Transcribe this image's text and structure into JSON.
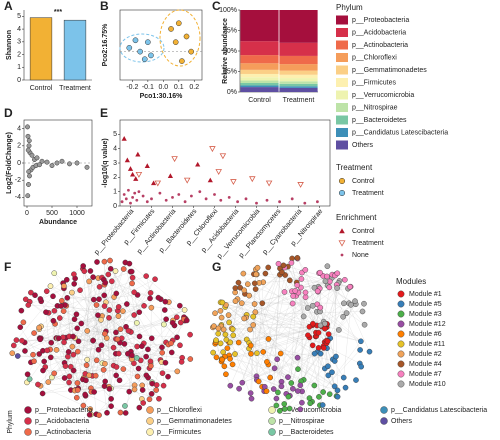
{
  "panels": [
    "A",
    "B",
    "C",
    "D",
    "E",
    "F",
    "G"
  ],
  "chart_data": [
    {
      "type": "bar",
      "ylabel": "Shannon",
      "categories": [
        "Control",
        "Treatment"
      ],
      "values": [
        4.9,
        4.7
      ],
      "colors": [
        "#f2b134",
        "#7cc3ea"
      ],
      "ylim": [
        0,
        5.5
      ],
      "yticks": [
        0,
        1,
        2,
        3,
        4,
        5
      ],
      "annotation": "***"
    },
    {
      "type": "scatter",
      "xlabel": "Pco1:30.16%",
      "ylabel": "Pco2:16.75%",
      "legend_title": "Treatment",
      "series": [
        {
          "name": "Control",
          "color": "#f2b134",
          "marker": "circle",
          "x": [
            0.05,
            0.08,
            0.1,
            0.12,
            0.15,
            0.18
          ],
          "values": [
            0.12,
            0.05,
            0.15,
            -0.05,
            0.08,
            0.0
          ]
        },
        {
          "name": "Treatment",
          "color": "#7cc3ea",
          "marker": "circle",
          "x": [
            -0.22,
            -0.18,
            -0.15,
            -0.12,
            -0.1,
            -0.08
          ],
          "values": [
            0.02,
            0.06,
            0.0,
            -0.04,
            0.05,
            -0.02
          ]
        }
      ],
      "xlim": [
        -0.28,
        0.25
      ],
      "ylim": [
        -0.15,
        0.22
      ],
      "xticks": [
        -0.2,
        -0.1,
        {
          "value": 0,
          "label": "0.0"
        },
        0.1,
        0.2
      ]
    },
    {
      "type": "stacked_bar",
      "ylabel": "Relative abundance",
      "legend_title": "Phylum",
      "categories": [
        "Control",
        "Treatment"
      ],
      "series": [
        {
          "name": "p__Proteobacteria",
          "color": "#a50f3d",
          "values": [
            38,
            40
          ]
        },
        {
          "name": "p__Acidobacteria",
          "color": "#d6304a",
          "values": [
            17,
            16
          ]
        },
        {
          "name": "p__Actinobacteria",
          "color": "#ef6a4a",
          "values": [
            10,
            10
          ]
        },
        {
          "name": "p__Chloroflexi",
          "color": "#f59d5b",
          "values": [
            8,
            8
          ]
        },
        {
          "name": "p__Gemmatimonadetes",
          "color": "#fbcf86",
          "values": [
            5,
            5
          ]
        },
        {
          "name": "p__Firmicutes",
          "color": "#fdf0b0",
          "values": [
            4,
            4
          ]
        },
        {
          "name": "p__Verrucomicrobia",
          "color": "#eef3b0",
          "values": [
            4,
            4
          ]
        },
        {
          "name": "p__Nitrospirae",
          "color": "#bde3a8",
          "values": [
            3,
            3
          ]
        },
        {
          "name": "p__Bacteroidetes",
          "color": "#79c7a4",
          "values": [
            3,
            3
          ]
        },
        {
          "name": "p__Candidatus Latescibacteria",
          "color": "#3d8fb8",
          "values": [
            2,
            2
          ]
        },
        {
          "name": "Others",
          "color": "#5e4fa2",
          "values": [
            6,
            5
          ]
        }
      ],
      "ylim": [
        0,
        100
      ],
      "yticks": [
        {
          "value": 0,
          "label": "0%"
        },
        {
          "value": 25,
          "label": "25%"
        },
        {
          "value": 50,
          "label": "50%"
        },
        {
          "value": 75,
          "label": "75%"
        },
        {
          "value": 100,
          "label": "100%"
        }
      ]
    },
    {
      "type": "scatter",
      "xlabel": "Abundance",
      "ylabel": "Log2(FoldChange)",
      "series": [
        {
          "color": "#9a9a9a",
          "marker": "circle",
          "x": [
            10,
            20,
            30,
            40,
            50,
            60,
            80,
            100,
            120,
            150,
            180,
            200,
            250,
            300,
            400,
            500,
            600,
            700,
            850,
            1000,
            1200,
            15,
            25,
            35,
            45
          ],
          "values": [
            4.2,
            3.1,
            -2.5,
            2.0,
            -1.5,
            1.2,
            -0.8,
            0.9,
            -0.5,
            0.4,
            -0.3,
            0.6,
            -0.2,
            0.2,
            0.1,
            -0.3,
            0,
            0.2,
            -0.1,
            0,
            -0.5,
            -3.8,
            1.5,
            -1.0,
            2.6
          ]
        }
      ],
      "xlim": [
        -60,
        1300
      ],
      "ylim": [
        -5,
        5
      ],
      "xticks": [
        0,
        500,
        1000
      ],
      "yticks": [
        -4,
        -2,
        0,
        2,
        4
      ]
    },
    {
      "type": "scatter",
      "ylabel": "-log10(q value)",
      "legend_title": "Enrichment",
      "series": [
        {
          "name": "Control",
          "color": "#b2182b",
          "marker": "triangle",
          "x": [
            0.2,
            0.35,
            0.5,
            0.6,
            0.75,
            0.85,
            1.3,
            1.6,
            2.4,
            3.7,
            4.3
          ],
          "values": [
            4.7,
            3.2,
            2.6,
            2.2,
            1.9,
            3.6,
            2.8,
            1.6,
            2.1,
            2.9,
            1.8
          ]
        },
        {
          "name": "Treatment",
          "color": "#d6604d",
          "marker": "triangle-down",
          "x": [
            0.9,
            1.8,
            2.6,
            3.2,
            4.4,
            4.7,
            4.9,
            5.4,
            6.3,
            7.1,
            8.6
          ],
          "values": [
            2.2,
            1.6,
            3.3,
            1.8,
            4.0,
            2.4,
            3.5,
            1.7,
            1.9,
            1.6,
            1.5
          ]
        },
        {
          "name": "None",
          "color": "#a50f3d",
          "marker": "dot",
          "x": [
            0.1,
            0.2,
            0.3,
            0.4,
            0.5,
            0.6,
            0.7,
            0.8,
            0.9,
            1.1,
            1.3,
            1.5,
            1.9,
            2.2,
            2.5,
            2.8,
            3.1,
            3.4,
            3.8,
            4.1,
            4.5,
            4.8,
            5.2,
            5.6,
            6.0,
            6.5,
            7.0,
            7.6,
            8.2,
            8.8,
            9.4
          ],
          "values": [
            0.3,
            0.8,
            0.5,
            1.1,
            0.2,
            0.6,
            0.9,
            0.4,
            1.0,
            0.7,
            0.3,
            0.5,
            0.9,
            0.4,
            0.6,
            0.8,
            0.3,
            0.7,
            1.0,
            0.5,
            0.8,
            0.4,
            0.6,
            0.3,
            0.5,
            0.2,
            0.4,
            0.3,
            0.5,
            0.2,
            0.3
          ]
        }
      ],
      "xlim": [
        0,
        10
      ],
      "ylim": [
        0,
        6
      ],
      "yticks": [
        0,
        1,
        2,
        3,
        4,
        5
      ],
      "xticks": [
        {
          "value": 0.5,
          "label": "p__Proteobacteria"
        },
        {
          "value": 1.5,
          "label": "p__Firmicutes"
        },
        {
          "value": 2.5,
          "label": "p__Actinobacteria"
        },
        {
          "value": 3.5,
          "label": "p__Bacteroidetes"
        },
        {
          "value": 4.5,
          "label": "p__Chloroflexi"
        },
        {
          "value": 5.5,
          "label": "p__Acidobacteria"
        },
        {
          "value": 6.5,
          "label": "p__Verrucomicrobia"
        },
        {
          "value": 7.5,
          "label": "p__Planctomycetes"
        },
        {
          "value": 8.5,
          "label": "p__Cyanobacteria"
        },
        {
          "value": 9.5,
          "label": "p__Nitrospirae"
        }
      ]
    },
    {
      "type": "network",
      "legend_title": "Phylum",
      "groups": [
        {
          "name": "p__Proteobacteria",
          "color": "#a50f3d"
        },
        {
          "name": "p__Acidobacteria",
          "color": "#d6304a"
        },
        {
          "name": "p__Actinobacteria",
          "color": "#ef6a4a"
        },
        {
          "name": "p__Chloroflexi",
          "color": "#f59d5b"
        },
        {
          "name": "p__Gemmatimonadetes",
          "color": "#fbcf86"
        },
        {
          "name": "p__Firmicutes",
          "color": "#fdf0b0"
        },
        {
          "name": "p__Verrucomicrobia",
          "color": "#eef3b0"
        },
        {
          "name": "p__Nitrospirae",
          "color": "#bde3a8"
        },
        {
          "name": "p__Bacteroidetes",
          "color": "#79c7a4"
        },
        {
          "name": "p__Candidatus Latescibacteria",
          "color": "#3d8fb8"
        },
        {
          "name": "Others",
          "color": "#5e4fa2"
        }
      ]
    },
    {
      "type": "network",
      "legend_title": "Modules",
      "groups": [
        {
          "name": "Module #1",
          "color": "#e41a1c"
        },
        {
          "name": "Module #5",
          "color": "#377eb8"
        },
        {
          "name": "Module #3",
          "color": "#4daf4a"
        },
        {
          "name": "Module #12",
          "color": "#984ea3"
        },
        {
          "name": "Module #6",
          "color": "#ff7f00"
        },
        {
          "name": "Module #11",
          "color": "#e6c229"
        },
        {
          "name": "Module #2",
          "color": "#f0a35a"
        },
        {
          "name": "Module #4",
          "color": "#a65628"
        },
        {
          "name": "Module #7",
          "color": "#f781bf"
        },
        {
          "name": "Module #10",
          "color": "#aaaaaa"
        }
      ]
    }
  ]
}
